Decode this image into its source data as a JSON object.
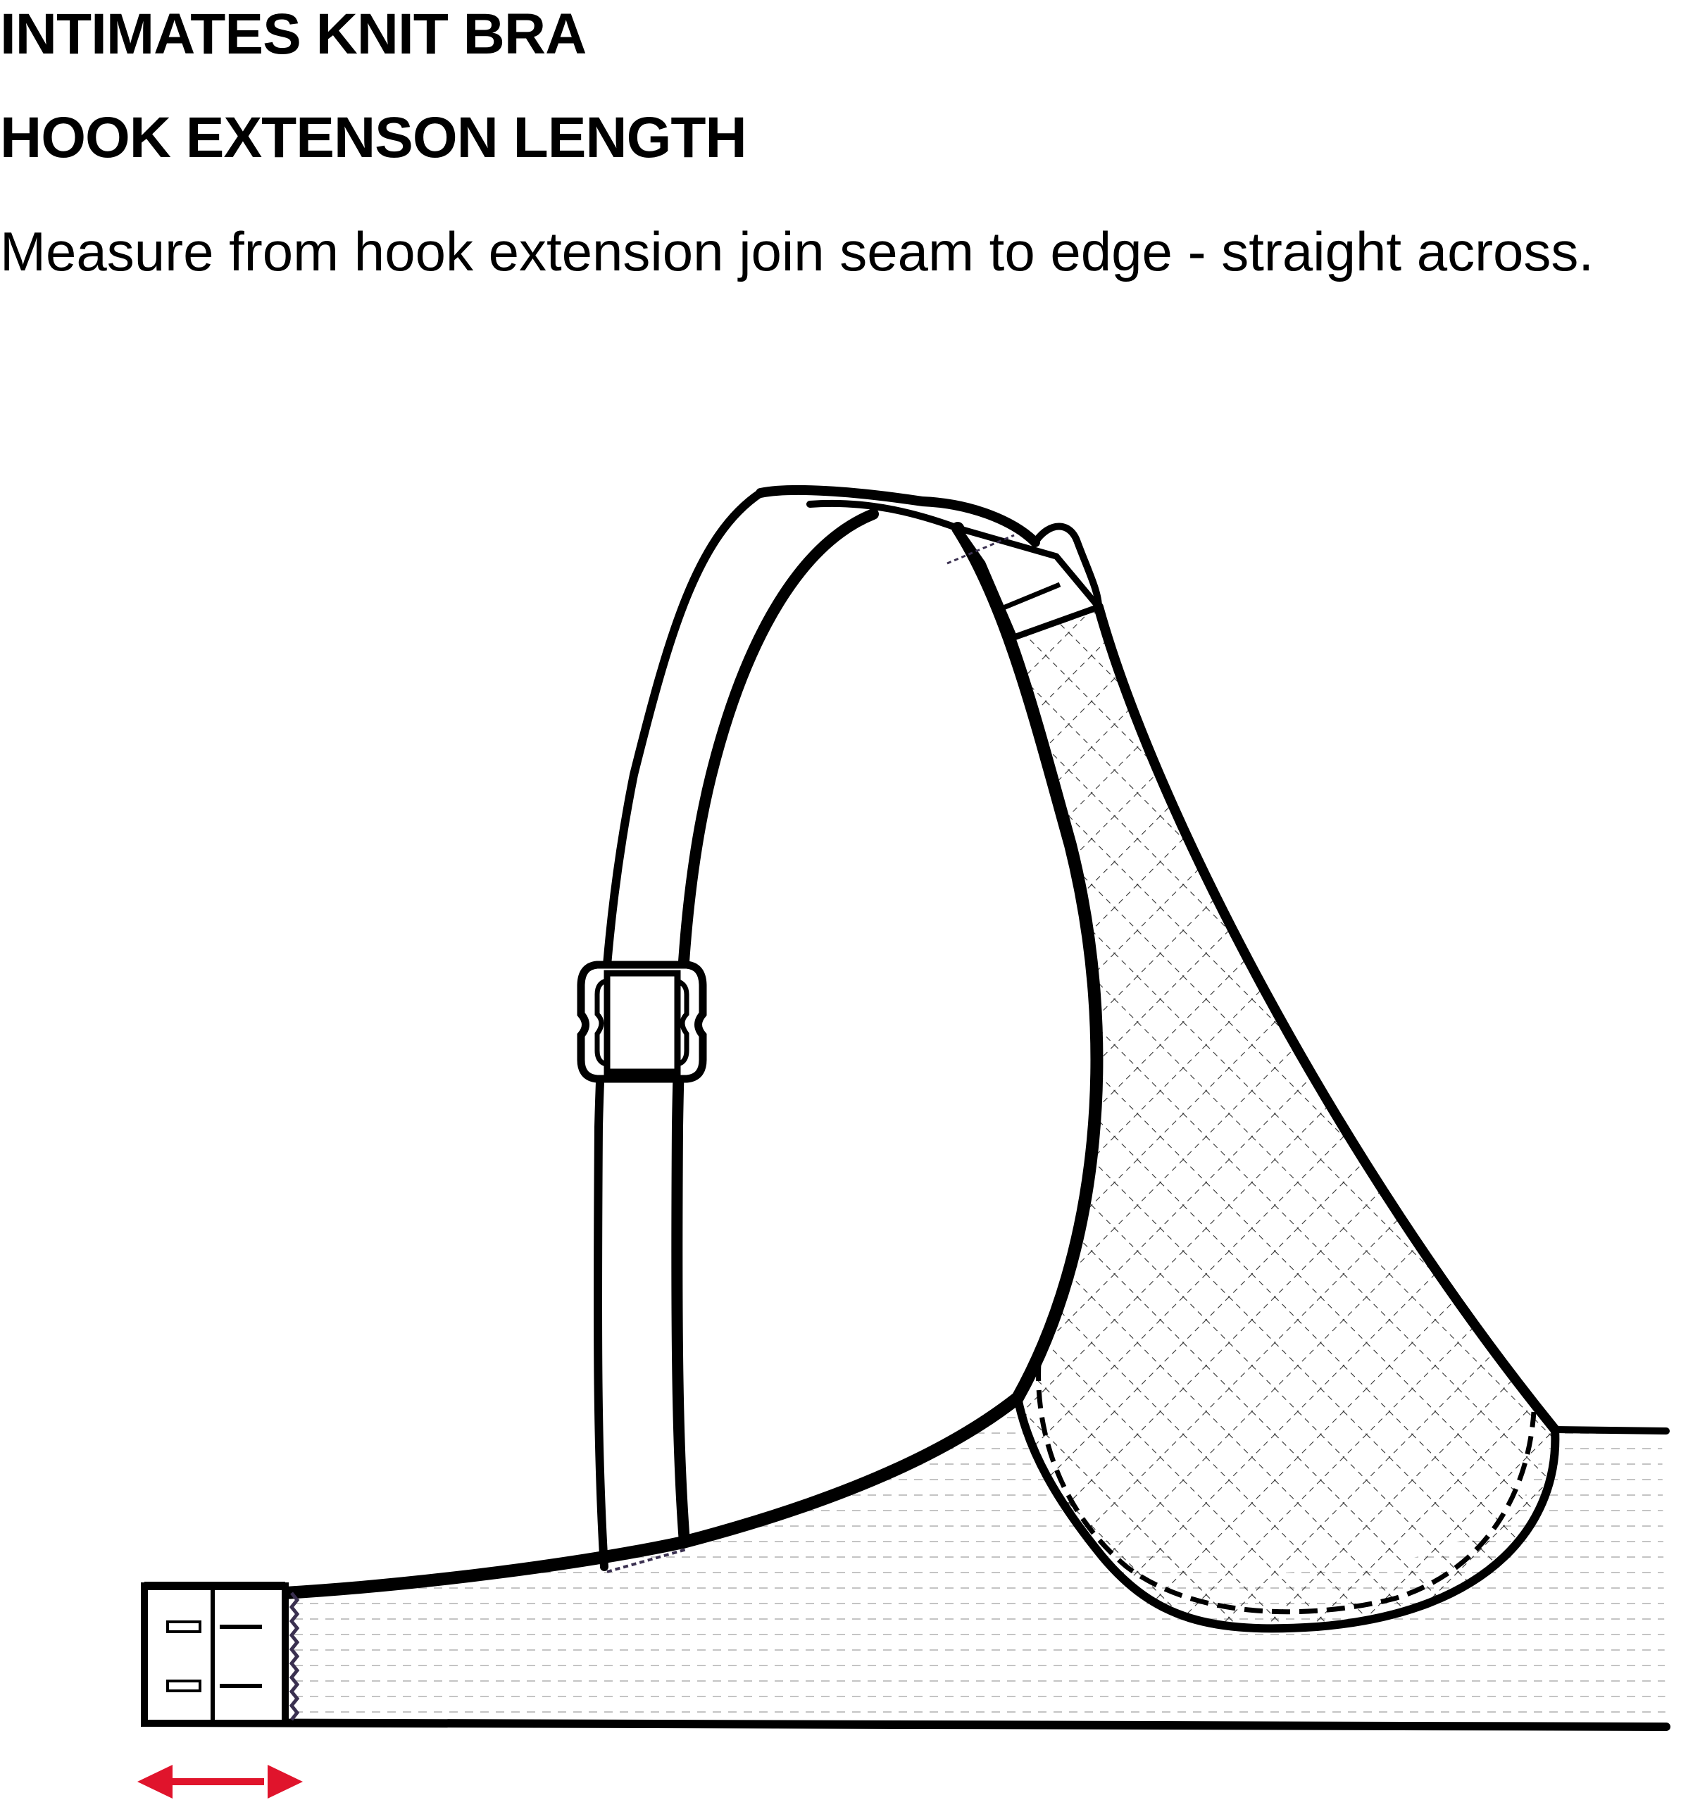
{
  "header": {
    "title": "INTIMATES KNIT BRA",
    "subtitle": "HOOK EXTENSON LENGTH"
  },
  "instruction": "Measure from hook extension join seam to edge - straight across.",
  "diagram": {
    "subject": "bra side view with hook extension",
    "measurement_indicator": "double-headed arrow",
    "measurement_color": "#e0142c",
    "hooks_count": 2
  }
}
